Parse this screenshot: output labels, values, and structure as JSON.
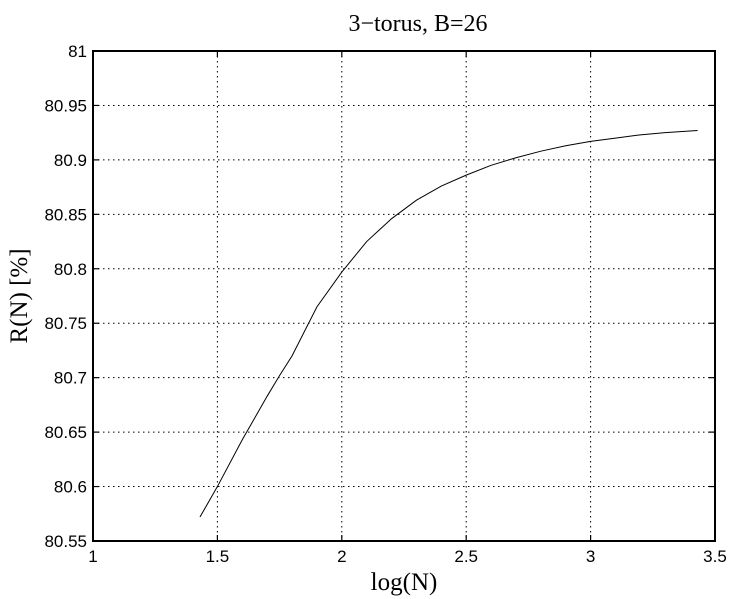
{
  "chart_data": {
    "type": "line",
    "title": "3−torus, B=26",
    "xlabel": "log(N)",
    "ylabel": "R(N) [%]",
    "xlim": [
      1,
      3.5
    ],
    "ylim": [
      80.55,
      81
    ],
    "xticks": [
      1,
      1.5,
      2,
      2.5,
      3,
      3.5
    ],
    "xtick_labels": [
      "1",
      "1.5",
      "2",
      "2.5",
      "3",
      "3.5"
    ],
    "yticks": [
      80.55,
      80.6,
      80.65,
      80.7,
      80.75,
      80.8,
      80.85,
      80.9,
      80.95,
      81
    ],
    "ytick_labels": [
      "80.55",
      "80.6",
      "80.65",
      "80.7",
      "80.75",
      "80.8",
      "80.85",
      "80.9",
      "80.95",
      "81"
    ],
    "grid": true,
    "series": [
      {
        "x": [
          1.43,
          1.5,
          1.6,
          1.7,
          1.75,
          1.8,
          1.9,
          2.0,
          2.1,
          2.2,
          2.3,
          2.4,
          2.5,
          2.6,
          2.7,
          2.8,
          2.9,
          3.0,
          3.1,
          3.2,
          3.3,
          3.43
        ],
        "y": [
          80.572,
          80.6,
          80.643,
          80.683,
          80.702,
          80.72,
          80.765,
          80.797,
          80.825,
          80.846,
          80.863,
          80.876,
          80.886,
          80.895,
          80.902,
          80.908,
          80.913,
          80.917,
          80.92,
          80.923,
          80.925,
          80.927
        ]
      }
    ]
  }
}
